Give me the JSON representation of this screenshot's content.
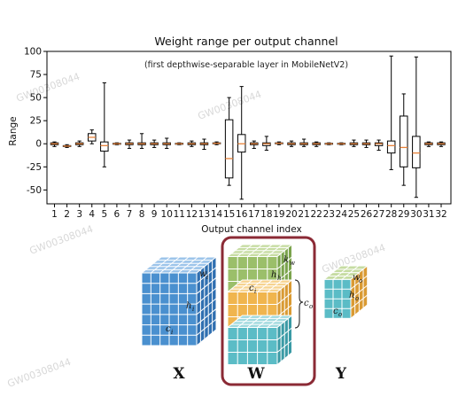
{
  "chart_data": {
    "type": "box",
    "title": "Weight range per output channel",
    "subtitle": "(first depthwise-separable layer in MobileNetV2)",
    "xlabel": "Output channel index",
    "ylabel": "Range",
    "ylim": [
      -65,
      100
    ],
    "yticks": [
      100,
      75,
      50,
      25,
      0,
      -25,
      -50
    ],
    "categories": [
      "1",
      "2",
      "3",
      "4",
      "5",
      "6",
      "7",
      "8",
      "9",
      "10",
      "11",
      "12",
      "13",
      "14",
      "15",
      "16",
      "17",
      "18",
      "19",
      "20",
      "21",
      "22",
      "23",
      "24",
      "25",
      "26",
      "27",
      "28",
      "29",
      "30",
      "31",
      "32"
    ],
    "boxes": [
      {
        "min": -3,
        "q1": -1,
        "median": 0,
        "q3": 1,
        "max": 2
      },
      {
        "min": -4,
        "q1": -3,
        "median": -2.5,
        "q3": -2,
        "max": -1
      },
      {
        "min": -3,
        "q1": -1,
        "median": 0,
        "q3": 1,
        "max": 3
      },
      {
        "min": 0,
        "q1": 3,
        "median": 7,
        "q3": 11,
        "max": 15
      },
      {
        "min": -25,
        "q1": -8,
        "median": -2,
        "q3": 2,
        "max": 66
      },
      {
        "min": -1,
        "q1": -0.5,
        "median": 0,
        "q3": 0.5,
        "max": 1
      },
      {
        "min": -5,
        "q1": -1,
        "median": 0,
        "q3": 1,
        "max": 4
      },
      {
        "min": -5,
        "q1": -1,
        "median": 0,
        "q3": 1,
        "max": 11
      },
      {
        "min": -4,
        "q1": -1,
        "median": 0,
        "q3": 1,
        "max": 4
      },
      {
        "min": -5,
        "q1": -1,
        "median": 0,
        "q3": 1,
        "max": 6
      },
      {
        "min": -1,
        "q1": -0.5,
        "median": 0,
        "q3": 0.5,
        "max": 1
      },
      {
        "min": -3,
        "q1": -1,
        "median": 0,
        "q3": 1,
        "max": 3
      },
      {
        "min": -6,
        "q1": -1,
        "median": 0,
        "q3": 1,
        "max": 5
      },
      {
        "min": -1,
        "q1": 0,
        "median": 0.5,
        "q3": 1,
        "max": 2
      },
      {
        "min": -45,
        "q1": -37,
        "median": -16,
        "q3": 26,
        "max": 50
      },
      {
        "min": -60,
        "q1": -9,
        "median": 0,
        "q3": 10,
        "max": 62
      },
      {
        "min": -5,
        "q1": -1,
        "median": 0,
        "q3": 1,
        "max": 3
      },
      {
        "min": -7,
        "q1": -2,
        "median": 0,
        "q3": 1,
        "max": 8
      },
      {
        "min": -1,
        "q1": 0,
        "median": 0.5,
        "q3": 1,
        "max": 2
      },
      {
        "min": -3,
        "q1": -1,
        "median": 0,
        "q3": 1,
        "max": 3
      },
      {
        "min": -3,
        "q1": -1,
        "median": 0,
        "q3": 1,
        "max": 5
      },
      {
        "min": -3,
        "q1": -1,
        "median": 0,
        "q3": 1,
        "max": 2
      },
      {
        "min": -1,
        "q1": -0.5,
        "median": 0,
        "q3": 0.5,
        "max": 1
      },
      {
        "min": -1,
        "q1": -0.5,
        "median": 0,
        "q3": 0.5,
        "max": 1
      },
      {
        "min": -3,
        "q1": -1,
        "median": 0,
        "q3": 1,
        "max": 4
      },
      {
        "min": -4,
        "q1": -1,
        "median": 0,
        "q3": 1,
        "max": 4
      },
      {
        "min": -7,
        "q1": -2,
        "median": 0,
        "q3": 1,
        "max": 4
      },
      {
        "min": -28,
        "q1": -10,
        "median": -2,
        "q3": 3,
        "max": 95
      },
      {
        "min": -45,
        "q1": -25,
        "median": -4,
        "q3": 30,
        "max": 54
      },
      {
        "min": -58,
        "q1": -26,
        "median": -10,
        "q3": 8,
        "max": 94
      },
      {
        "min": -3,
        "q1": -1,
        "median": 0,
        "q3": 1,
        "max": 2
      },
      {
        "min": -3,
        "q1": -1,
        "median": 0,
        "q3": 1,
        "max": 2
      }
    ]
  },
  "diagram": {
    "labels": {
      "X": "X",
      "W": "W",
      "Y": "Y"
    },
    "x_cube": {
      "w": "w",
      "h": "h",
      "c": "c",
      "w_sub": "i",
      "h_sub": "i",
      "c_sub": "i"
    },
    "w_stack": {
      "k": "k",
      "k_sub": "w",
      "h": "h",
      "h_sub": "h",
      "c": "c",
      "c_sub": "i",
      "co": "c",
      "co_sub": "o"
    },
    "y_cube": {
      "w": "w",
      "w_sub": "o",
      "h": "h",
      "h_sub": "o",
      "c": "c",
      "c_sub": "o"
    },
    "colors": {
      "x_blue": "#4a90cf",
      "x_blue_dark": "#2f6fb0",
      "x_blue_light": "#9cc4ea",
      "w_green": "#9bbf6a",
      "w_green_dark": "#7aa34c",
      "w_green_light": "#c6dca2",
      "w_orange": "#f0b54e",
      "w_orange_dark": "#d99a33",
      "w_orange_light": "#f7d38f",
      "w_teal": "#5bbcc6",
      "w_teal_dark": "#3a9aa5",
      "w_teal_light": "#9fd9de",
      "frame": "#8b2a35",
      "median": "#e8823a"
    }
  },
  "watermarks": [
    "GW00308044",
    "GW00308044",
    "GW00308044",
    "GW00308044",
    "GW00308044"
  ]
}
